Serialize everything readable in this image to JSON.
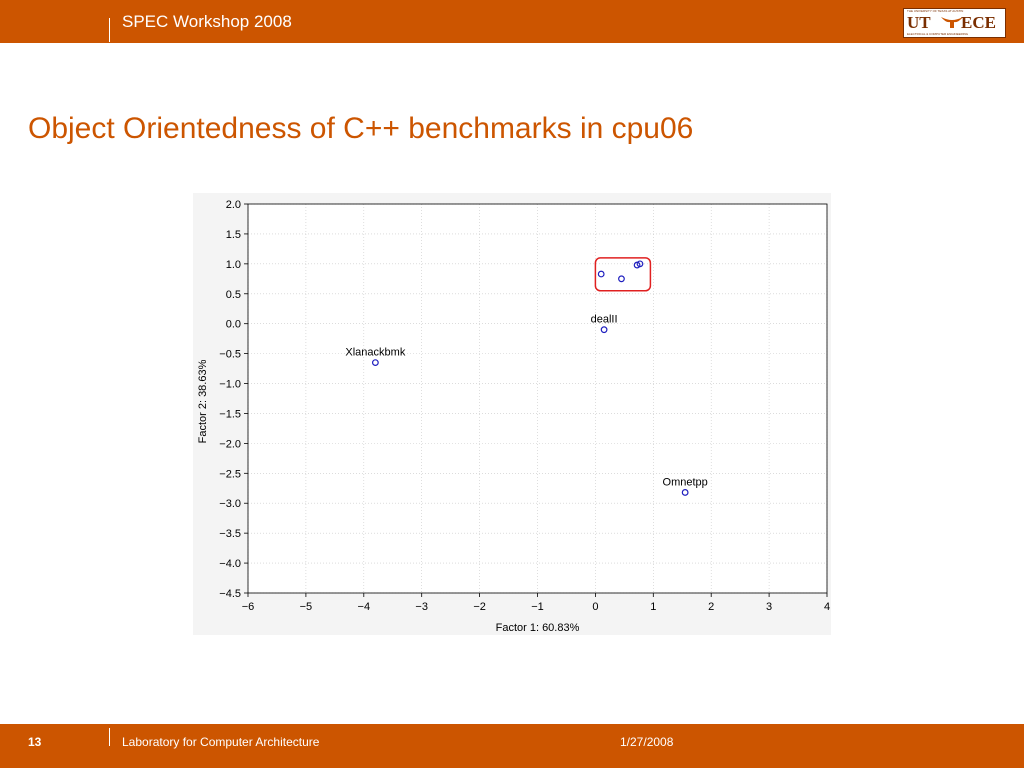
{
  "header": {
    "title": "SPEC Workshop 2008",
    "logo": {
      "left": "UT",
      "right": "ECE",
      "top_line": "THE UNIVERSITY OF TEXAS AT AUSTIN",
      "bottom_line": "ELECTRICAL & COMPUTER ENGINEERING"
    }
  },
  "slide": {
    "title": "Object Orientedness of C++ benchmarks in cpu06"
  },
  "footer": {
    "page_number": "13",
    "lab": "Laboratory for Computer Architecture",
    "date": "1/27/2008"
  },
  "colors": {
    "bar": "#cc5500",
    "title": "#cc5500",
    "marker": "#1f1fbf",
    "highlight": "#e02020"
  },
  "chart_data": {
    "type": "scatter",
    "xlabel": "Factor 1: 60.83%",
    "ylabel": "Factor 2: 38.63%",
    "xlim": [
      -6,
      4
    ],
    "ylim": [
      -4.5,
      2.0
    ],
    "xticks": [
      -6,
      -5,
      -4,
      -3,
      -2,
      -1,
      0,
      1,
      2,
      3,
      4
    ],
    "yticks": [
      2.0,
      1.5,
      1.0,
      0.5,
      0.0,
      -0.5,
      -1.0,
      -1.5,
      -2.0,
      -2.5,
      -3.0,
      -3.5,
      -4.0,
      -4.5
    ],
    "grid": true,
    "points": [
      {
        "x": 0.1,
        "y": 0.83,
        "label": ""
      },
      {
        "x": 0.45,
        "y": 0.75,
        "label": ""
      },
      {
        "x": 0.72,
        "y": 0.98,
        "label": ""
      },
      {
        "x": 0.77,
        "y": 1.0,
        "label": ""
      },
      {
        "x": 0.15,
        "y": -0.1,
        "label": "dealII"
      },
      {
        "x": -3.8,
        "y": -0.65,
        "label": "Xlanackbmk"
      },
      {
        "x": 1.55,
        "y": -2.82,
        "label": "Omnetpp"
      }
    ],
    "highlight_box": {
      "x": [
        0.0,
        0.95
      ],
      "y": [
        0.55,
        1.1
      ]
    }
  }
}
